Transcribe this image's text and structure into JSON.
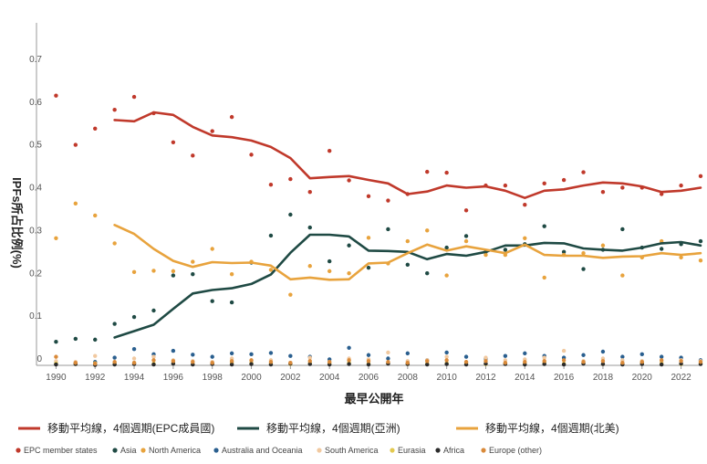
{
  "chart_data": {
    "type": "line",
    "xlabel": "最早公開年",
    "ylabel": "IPFs所占比例(%)",
    "ylim": [
      0,
      0.8
    ],
    "xlim": [
      1989,
      2023
    ],
    "yticks": [
      0,
      0.1,
      0.2,
      0.3,
      0.4,
      0.5,
      0.6,
      0.7
    ],
    "ytick_labels": [
      "0",
      "0.1",
      "0.2",
      "0.3",
      "0.4",
      "0.5",
      "0.6",
      "0.7"
    ],
    "xticks": [
      1990,
      1992,
      1994,
      1996,
      1998,
      2000,
      2002,
      2004,
      2006,
      2008,
      2010,
      2012,
      2014,
      2016,
      2018,
      2020,
      2022
    ],
    "xtick_labels": [
      "1990",
      "1992",
      "1994",
      "1996",
      "1998",
      "2000",
      "2002",
      "2004",
      "2006",
      "2008",
      "2010",
      "2012",
      "2014",
      "2016",
      "2018",
      "2020",
      "2022"
    ],
    "grid": false,
    "legend_position": "bottom",
    "lines": [
      {
        "name": "移動平均線，4個週期(EPC成員國)",
        "color": "#c0392b",
        "x": [
          1993,
          1994,
          1995,
          1996,
          1997,
          1998,
          1999,
          2000,
          2001,
          2002,
          2003,
          2004,
          2005,
          2006,
          2007,
          2008,
          2009,
          2010,
          2011,
          2012,
          2013,
          2014,
          2015,
          2016,
          2017,
          2018,
          2019,
          2020,
          2021,
          2022,
          2023
        ],
        "y": [
          0.573,
          0.57,
          0.591,
          0.585,
          0.557,
          0.537,
          0.533,
          0.525,
          0.51,
          0.484,
          0.437,
          0.44,
          0.442,
          0.433,
          0.425,
          0.4,
          0.406,
          0.42,
          0.415,
          0.418,
          0.408,
          0.391,
          0.408,
          0.411,
          0.42,
          0.427,
          0.425,
          0.418,
          0.405,
          0.408,
          0.415
        ]
      },
      {
        "name": "移動平均線，4個週期(亞洲)",
        "color": "#1f4a44",
        "x": [
          1993,
          1994,
          1995,
          1996,
          1997,
          1998,
          1999,
          2000,
          2001,
          2002,
          2003,
          2004,
          2005,
          2006,
          2007,
          2008,
          2009,
          2010,
          2011,
          2012,
          2013,
          2014,
          2015,
          2016,
          2017,
          2018,
          2019,
          2020,
          2021,
          2022,
          2023
        ],
        "y": [
          0.065,
          0.08,
          0.095,
          0.132,
          0.168,
          0.176,
          0.18,
          0.19,
          0.212,
          0.263,
          0.305,
          0.305,
          0.301,
          0.268,
          0.267,
          0.265,
          0.248,
          0.26,
          0.256,
          0.265,
          0.28,
          0.28,
          0.286,
          0.285,
          0.273,
          0.27,
          0.268,
          0.275,
          0.285,
          0.288,
          0.28
        ]
      },
      {
        "name": "移動平均線，4個週期(北美)",
        "color": "#e8a33d",
        "x": [
          1993,
          1994,
          1995,
          1996,
          1997,
          1998,
          1999,
          2000,
          2001,
          2002,
          2003,
          2004,
          2005,
          2006,
          2007,
          2008,
          2009,
          2010,
          2011,
          2012,
          2013,
          2014,
          2015,
          2016,
          2017,
          2018,
          2019,
          2020,
          2021,
          2022,
          2023
        ],
        "y": [
          0.328,
          0.307,
          0.272,
          0.244,
          0.23,
          0.241,
          0.239,
          0.24,
          0.233,
          0.201,
          0.205,
          0.2,
          0.201,
          0.238,
          0.24,
          0.262,
          0.282,
          0.268,
          0.278,
          0.27,
          0.262,
          0.282,
          0.258,
          0.256,
          0.256,
          0.251,
          0.254,
          0.255,
          0.262,
          0.258,
          0.262
        ]
      }
    ],
    "scatter": [
      {
        "name": "EPC member states",
        "color": "#c0392b",
        "x": [
          1990,
          1991,
          1992,
          1993,
          1994,
          1995,
          1996,
          1997,
          1998,
          1999,
          2000,
          2001,
          2002,
          2003,
          2004,
          2005,
          2006,
          2007,
          2008,
          2009,
          2010,
          2011,
          2012,
          2013,
          2014,
          2015,
          2016,
          2017,
          2018,
          2019,
          2020,
          2021,
          2022,
          2023
        ],
        "y": [
          0.63,
          0.515,
          0.553,
          0.597,
          0.627,
          0.589,
          0.521,
          0.49,
          0.547,
          0.58,
          0.492,
          0.422,
          0.435,
          0.405,
          0.501,
          0.432,
          0.395,
          0.385,
          0.4,
          0.452,
          0.45,
          0.362,
          0.42,
          0.42,
          0.375,
          0.425,
          0.433,
          0.451,
          0.405,
          0.415,
          0.415,
          0.4,
          0.42,
          0.442
        ]
      },
      {
        "name": "Asia",
        "color": "#1f4a44",
        "x": [
          1990,
          1991,
          1992,
          1993,
          1994,
          1995,
          1996,
          1997,
          1998,
          1999,
          2000,
          2001,
          2002,
          2003,
          2004,
          2005,
          2006,
          2007,
          2008,
          2009,
          2010,
          2011,
          2012,
          2013,
          2014,
          2015,
          2016,
          2017,
          2018,
          2019,
          2020,
          2021,
          2022,
          2023
        ],
        "y": [
          0.055,
          0.062,
          0.06,
          0.097,
          0.113,
          0.128,
          0.21,
          0.213,
          0.15,
          0.147,
          0.24,
          0.303,
          0.352,
          0.322,
          0.243,
          0.28,
          0.228,
          0.318,
          0.235,
          0.215,
          0.275,
          0.302,
          0.265,
          0.27,
          0.283,
          0.325,
          0.265,
          0.225,
          0.27,
          0.318,
          0.275,
          0.272,
          0.283,
          0.29
        ]
      },
      {
        "name": "North America",
        "color": "#e8a33d",
        "x": [
          1990,
          1991,
          1992,
          1993,
          1994,
          1995,
          1996,
          1997,
          1998,
          1999,
          2000,
          2001,
          2002,
          2003,
          2004,
          2005,
          2006,
          2007,
          2008,
          2009,
          2010,
          2011,
          2012,
          2013,
          2014,
          2015,
          2016,
          2017,
          2018,
          2019,
          2020,
          2021,
          2022,
          2023
        ],
        "y": [
          0.297,
          0.378,
          0.35,
          0.285,
          0.218,
          0.221,
          0.22,
          0.242,
          0.272,
          0.213,
          0.242,
          0.223,
          0.165,
          0.232,
          0.22,
          0.215,
          0.298,
          0.238,
          0.29,
          0.315,
          0.21,
          0.29,
          0.258,
          0.258,
          0.297,
          0.205,
          0.258,
          0.262,
          0.28,
          0.21,
          0.252,
          0.29,
          0.252,
          0.245
        ]
      },
      {
        "name": "Australia and Oceania",
        "color": "#2a5f8f",
        "x": [
          1990,
          1991,
          1992,
          1993,
          1994,
          1995,
          1996,
          1997,
          1998,
          1999,
          2000,
          2001,
          2002,
          2003,
          2004,
          2005,
          2006,
          2007,
          2008,
          2009,
          2010,
          2011,
          2012,
          2013,
          2014,
          2015,
          2016,
          2017,
          2018,
          2019,
          2020,
          2021,
          2022,
          2023
        ],
        "y": [
          0.004,
          0.006,
          0.008,
          0.018,
          0.038,
          0.026,
          0.034,
          0.025,
          0.02,
          0.028,
          0.026,
          0.029,
          0.022,
          0.02,
          0.014,
          0.041,
          0.024,
          0.016,
          0.028,
          0.012,
          0.03,
          0.02,
          0.016,
          0.022,
          0.028,
          0.022,
          0.018,
          0.024,
          0.032,
          0.02,
          0.026,
          0.02,
          0.018,
          0.012
        ]
      },
      {
        "name": "South America",
        "color": "#f1c9a0",
        "x": [
          1990,
          1991,
          1992,
          1993,
          1994,
          1995,
          1996,
          1997,
          1998,
          1999,
          2000,
          2001,
          2002,
          2003,
          2004,
          2005,
          2006,
          2007,
          2008,
          2009,
          2010,
          2011,
          2012,
          2013,
          2014,
          2015,
          2016,
          2017,
          2018,
          2019,
          2020,
          2021,
          2022,
          2023
        ],
        "y": [
          0.01,
          0.008,
          0.022,
          0.006,
          0.016,
          0.02,
          0.012,
          0.01,
          0.008,
          0.016,
          0.01,
          0.012,
          0.006,
          0.018,
          0.008,
          0.016,
          0.014,
          0.03,
          0.01,
          0.012,
          0.02,
          0.008,
          0.018,
          0.012,
          0.014,
          0.018,
          0.034,
          0.01,
          0.016,
          0.012,
          0.01,
          0.008,
          0.012,
          0.01
        ]
      },
      {
        "name": "Eurasia",
        "color": "#e3c94f",
        "x": [
          1990,
          1991,
          1992,
          1993,
          1994,
          1995,
          1996,
          1997,
          1998,
          1999,
          2000,
          2001,
          2002,
          2003,
          2004,
          2005,
          2006,
          2007,
          2008,
          2009,
          2010,
          2011,
          2012,
          2013,
          2014,
          2015,
          2016,
          2017,
          2018,
          2019,
          2020,
          2021,
          2022,
          2023
        ],
        "y": [
          0.004,
          0.003,
          0.005,
          0.004,
          0.006,
          0.004,
          0.005,
          0.003,
          0.004,
          0.006,
          0.005,
          0.004,
          0.003,
          0.005,
          0.004,
          0.006,
          0.004,
          0.005,
          0.003,
          0.004,
          0.005,
          0.004,
          0.003,
          0.005,
          0.004,
          0.006,
          0.004,
          0.005,
          0.003,
          0.004,
          0.005,
          0.004,
          0.003,
          0.004
        ]
      },
      {
        "name": "Africa",
        "color": "#2b2b2b",
        "x": [
          1990,
          1991,
          1992,
          1993,
          1994,
          1995,
          1996,
          1997,
          1998,
          1999,
          2000,
          2001,
          2002,
          2003,
          2004,
          2005,
          2006,
          2007,
          2008,
          2009,
          2010,
          2011,
          2012,
          2013,
          2014,
          2015,
          2016,
          2017,
          2018,
          2019,
          2020,
          2021,
          2022,
          2023
        ],
        "y": [
          0.002,
          0.003,
          0.001,
          0.002,
          0.003,
          0.002,
          0.004,
          0.002,
          0.003,
          0.002,
          0.003,
          0.002,
          0.004,
          0.003,
          0.002,
          0.003,
          0.002,
          0.004,
          0.003,
          0.002,
          0.003,
          0.002,
          0.004,
          0.003,
          0.002,
          0.003,
          0.002,
          0.004,
          0.003,
          0.002,
          0.003,
          0.002,
          0.004,
          0.003
        ]
      },
      {
        "name": "Europe (other)",
        "color": "#d98a3a",
        "x": [
          1990,
          1991,
          1992,
          1993,
          1994,
          1995,
          1996,
          1997,
          1998,
          1999,
          2000,
          2001,
          2002,
          2003,
          2004,
          2005,
          2006,
          2007,
          2008,
          2009,
          2010,
          2011,
          2012,
          2013,
          2014,
          2015,
          2016,
          2017,
          2018,
          2019,
          2020,
          2021,
          2022,
          2023
        ],
        "y": [
          0.02,
          0.006,
          0.004,
          0.008,
          0.006,
          0.012,
          0.01,
          0.008,
          0.006,
          0.01,
          0.012,
          0.008,
          0.006,
          0.01,
          0.008,
          0.012,
          0.01,
          0.008,
          0.006,
          0.01,
          0.012,
          0.008,
          0.01,
          0.006,
          0.008,
          0.01,
          0.012,
          0.008,
          0.01,
          0.006,
          0.008,
          0.012,
          0.01,
          0.008
        ]
      }
    ]
  }
}
